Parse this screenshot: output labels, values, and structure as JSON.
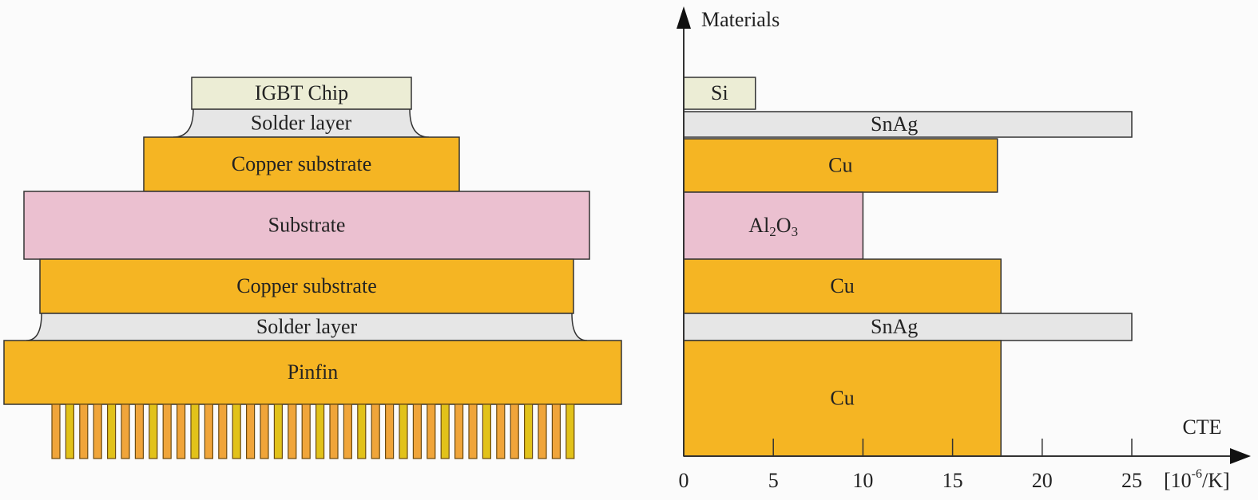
{
  "colors": {
    "copper": "#F5B523",
    "substrate": "#EBC0D0",
    "solder": "#E6E6E6",
    "chip": "#ECEDD5",
    "outline": "#333333"
  },
  "stack": {
    "layers": [
      {
        "label": "IGBT Chip",
        "kind": "chip"
      },
      {
        "label": "Solder layer",
        "kind": "solder"
      },
      {
        "label": "Copper substrate",
        "kind": "copper"
      },
      {
        "label": "Substrate",
        "kind": "substrate"
      },
      {
        "label": "Copper substrate",
        "kind": "copper"
      },
      {
        "label": "Solder layer",
        "kind": "solder"
      },
      {
        "label": "Pinfin",
        "kind": "copper"
      }
    ]
  },
  "chart_data": {
    "type": "bar",
    "orientation": "horizontal",
    "ylabel": "Materials",
    "xlabel": "CTE",
    "xunit_base": "[10",
    "xunit_exp": "-6",
    "xunit_tail": "/K]",
    "xlim": [
      0,
      25
    ],
    "xticks": [
      "0",
      "5",
      "10",
      "15",
      "20",
      "25"
    ],
    "categories": [
      "Si",
      "SnAg",
      "Cu",
      "Al2O3",
      "Cu",
      "SnAg",
      "Cu"
    ],
    "values": [
      4,
      25,
      17.5,
      10,
      17.7,
      25,
      17.7
    ],
    "kinds": [
      "chip",
      "solder",
      "copper",
      "substrate",
      "copper",
      "solder",
      "copper"
    ],
    "grid": false
  }
}
